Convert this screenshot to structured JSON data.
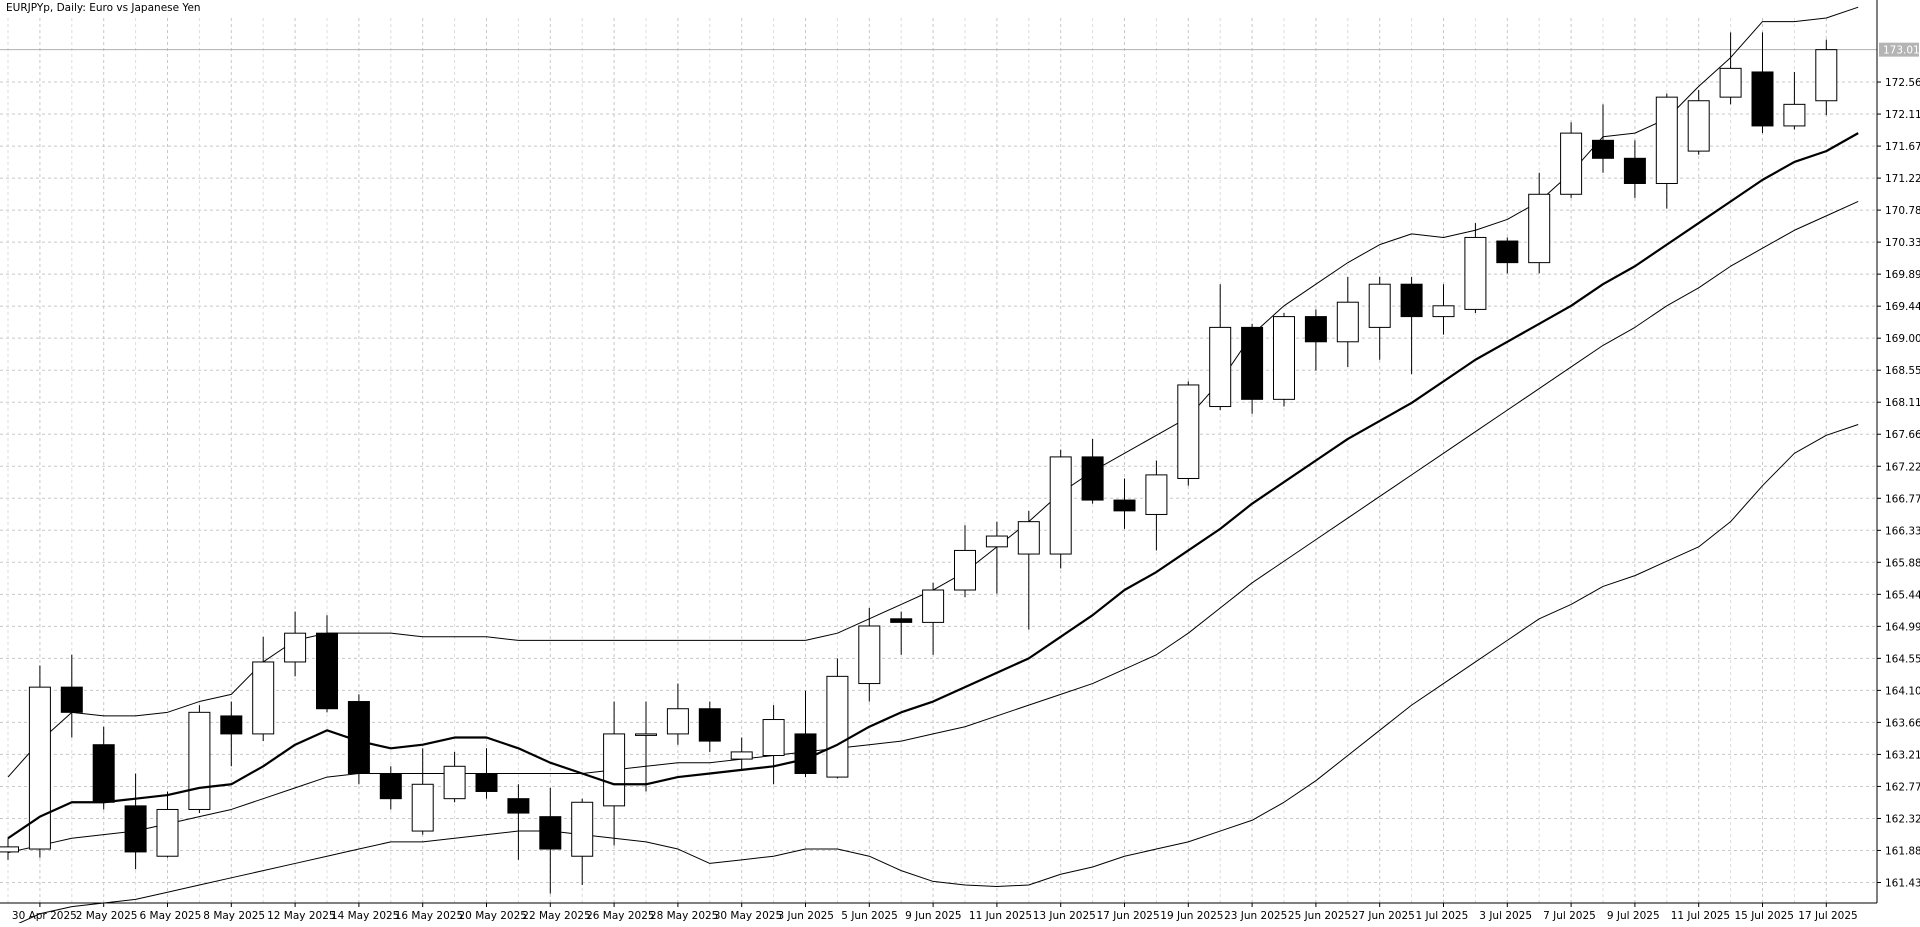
{
  "chart_data": {
    "type": "candlestick",
    "title": "EURJPYp, Daily:  Euro vs Japanese Yen",
    "symbol": "EURJPYp",
    "timeframe": "Daily",
    "ylim": [
      161.15,
      173.45
    ],
    "current_price": "173.010",
    "grid": true,
    "y_ticks": [
      "172.560",
      "172.115",
      "171.670",
      "171.225",
      "170.780",
      "170.335",
      "169.890",
      "169.445",
      "169.000",
      "168.555",
      "168.110",
      "167.665",
      "167.220",
      "166.775",
      "166.330",
      "165.885",
      "165.440",
      "164.995",
      "164.550",
      "164.105",
      "163.660",
      "163.215",
      "162.770",
      "162.325",
      "161.880",
      "161.435"
    ],
    "x_labels": [
      {
        "i": 1,
        "label": "30 Apr 2025"
      },
      {
        "i": 3,
        "label": "2 May 2025"
      },
      {
        "i": 5,
        "label": "6 May 2025"
      },
      {
        "i": 7,
        "label": "8 May 2025"
      },
      {
        "i": 9,
        "label": "12 May 2025"
      },
      {
        "i": 11,
        "label": "14 May 2025"
      },
      {
        "i": 13,
        "label": "16 May 2025"
      },
      {
        "i": 15,
        "label": "20 May 2025"
      },
      {
        "i": 17,
        "label": "22 May 2025"
      },
      {
        "i": 19,
        "label": "26 May 2025"
      },
      {
        "i": 21,
        "label": "28 May 2025"
      },
      {
        "i": 23,
        "label": "30 May 2025"
      },
      {
        "i": 25,
        "label": "3 Jun 2025"
      },
      {
        "i": 27,
        "label": "5 Jun 2025"
      },
      {
        "i": 29,
        "label": "9 Jun 2025"
      },
      {
        "i": 31,
        "label": "11 Jun 2025"
      },
      {
        "i": 33,
        "label": "13 Jun 2025"
      },
      {
        "i": 35,
        "label": "17 Jun 2025"
      },
      {
        "i": 37,
        "label": "19 Jun 2025"
      },
      {
        "i": 39,
        "label": "23 Jun 2025"
      },
      {
        "i": 41,
        "label": "25 Jun 2025"
      },
      {
        "i": 43,
        "label": "27 Jun 2025"
      },
      {
        "i": 45,
        "label": "1 Jul 2025"
      },
      {
        "i": 47,
        "label": "3 Jul 2025"
      },
      {
        "i": 49,
        "label": "7 Jul 2025"
      },
      {
        "i": 51,
        "label": "9 Jul 2025"
      },
      {
        "i": 53,
        "label": "11 Jul 2025"
      },
      {
        "i": 55,
        "label": "15 Jul 2025"
      },
      {
        "i": 57,
        "label": "17 Jul 2025"
      }
    ],
    "candles": [
      {
        "o": 161.86,
        "h": 162.05,
        "l": 161.75,
        "c": 161.93
      },
      {
        "o": 161.9,
        "h": 164.45,
        "l": 161.78,
        "c": 164.15
      },
      {
        "o": 164.15,
        "h": 164.6,
        "l": 163.45,
        "c": 163.8
      },
      {
        "o": 163.35,
        "h": 163.6,
        "l": 162.45,
        "c": 162.55
      },
      {
        "o": 162.5,
        "h": 162.95,
        "l": 161.62,
        "c": 161.86
      },
      {
        "o": 161.8,
        "h": 162.7,
        "l": 161.78,
        "c": 162.45
      },
      {
        "o": 162.45,
        "h": 163.9,
        "l": 162.4,
        "c": 163.8
      },
      {
        "o": 163.75,
        "h": 163.95,
        "l": 163.05,
        "c": 163.5
      },
      {
        "o": 163.5,
        "h": 164.85,
        "l": 163.4,
        "c": 164.5
      },
      {
        "o": 164.5,
        "h": 165.2,
        "l": 164.3,
        "c": 164.9
      },
      {
        "o": 164.9,
        "h": 165.15,
        "l": 163.8,
        "c": 163.85
      },
      {
        "o": 163.95,
        "h": 164.05,
        "l": 162.8,
        "c": 162.95
      },
      {
        "o": 162.95,
        "h": 163.05,
        "l": 162.45,
        "c": 162.6
      },
      {
        "o": 162.15,
        "h": 163.3,
        "l": 162.1,
        "c": 162.8
      },
      {
        "o": 162.6,
        "h": 163.25,
        "l": 162.55,
        "c": 163.05
      },
      {
        "o": 162.95,
        "h": 163.3,
        "l": 162.6,
        "c": 162.7
      },
      {
        "o": 162.6,
        "h": 162.8,
        "l": 161.75,
        "c": 162.4
      },
      {
        "o": 162.35,
        "h": 162.75,
        "l": 161.28,
        "c": 161.9
      },
      {
        "o": 161.8,
        "h": 162.6,
        "l": 161.4,
        "c": 162.55
      },
      {
        "o": 162.5,
        "h": 163.95,
        "l": 161.95,
        "c": 163.5
      },
      {
        "o": 163.5,
        "h": 163.95,
        "l": 162.7,
        "c": 163.5
      },
      {
        "o": 163.5,
        "h": 164.2,
        "l": 163.35,
        "c": 163.85
      },
      {
        "o": 163.85,
        "h": 163.95,
        "l": 163.25,
        "c": 163.4
      },
      {
        "o": 163.15,
        "h": 163.45,
        "l": 163.0,
        "c": 163.25
      },
      {
        "o": 163.2,
        "h": 163.9,
        "l": 162.8,
        "c": 163.7
      },
      {
        "o": 163.5,
        "h": 164.1,
        "l": 162.9,
        "c": 162.95
      },
      {
        "o": 162.9,
        "h": 164.55,
        "l": 162.88,
        "c": 164.3
      },
      {
        "o": 164.2,
        "h": 165.25,
        "l": 163.95,
        "c": 165.0
      },
      {
        "o": 165.1,
        "h": 165.2,
        "l": 164.6,
        "c": 165.05
      },
      {
        "o": 165.05,
        "h": 165.6,
        "l": 164.6,
        "c": 165.5
      },
      {
        "o": 165.5,
        "h": 166.4,
        "l": 165.4,
        "c": 166.05
      },
      {
        "o": 166.1,
        "h": 166.45,
        "l": 165.45,
        "c": 166.25
      },
      {
        "o": 166.0,
        "h": 166.6,
        "l": 164.95,
        "c": 166.45
      },
      {
        "o": 166.0,
        "h": 167.45,
        "l": 165.8,
        "c": 167.35
      },
      {
        "o": 167.35,
        "h": 167.6,
        "l": 166.7,
        "c": 166.75
      },
      {
        "o": 166.75,
        "h": 167.05,
        "l": 166.35,
        "c": 166.6
      },
      {
        "o": 166.55,
        "h": 167.3,
        "l": 166.05,
        "c": 167.1
      },
      {
        "o": 167.05,
        "h": 168.4,
        "l": 166.95,
        "c": 168.35
      },
      {
        "o": 168.05,
        "h": 169.75,
        "l": 168.0,
        "c": 169.15
      },
      {
        "o": 169.15,
        "h": 169.2,
        "l": 167.95,
        "c": 168.15
      },
      {
        "o": 168.15,
        "h": 169.35,
        "l": 168.05,
        "c": 169.3
      },
      {
        "o": 169.3,
        "h": 169.4,
        "l": 168.55,
        "c": 168.95
      },
      {
        "o": 168.95,
        "h": 169.85,
        "l": 168.6,
        "c": 169.5
      },
      {
        "o": 169.15,
        "h": 169.85,
        "l": 168.7,
        "c": 169.75
      },
      {
        "o": 169.75,
        "h": 169.85,
        "l": 168.5,
        "c": 169.3
      },
      {
        "o": 169.3,
        "h": 169.75,
        "l": 169.05,
        "c": 169.45
      },
      {
        "o": 169.4,
        "h": 170.6,
        "l": 169.35,
        "c": 170.4
      },
      {
        "o": 170.35,
        "h": 170.4,
        "l": 169.9,
        "c": 170.05
      },
      {
        "o": 170.05,
        "h": 171.3,
        "l": 169.9,
        "c": 171.0
      },
      {
        "o": 171.0,
        "h": 172.0,
        "l": 170.95,
        "c": 171.85
      },
      {
        "o": 171.75,
        "h": 172.25,
        "l": 171.3,
        "c": 171.5
      },
      {
        "o": 171.5,
        "h": 171.75,
        "l": 170.95,
        "c": 171.15
      },
      {
        "o": 171.15,
        "h": 172.4,
        "l": 170.8,
        "c": 172.35
      },
      {
        "o": 171.6,
        "h": 172.45,
        "l": 171.55,
        "c": 172.3
      },
      {
        "o": 172.35,
        "h": 173.25,
        "l": 172.25,
        "c": 172.75
      },
      {
        "o": 172.7,
        "h": 173.25,
        "l": 171.85,
        "c": 171.95
      },
      {
        "o": 171.95,
        "h": 172.7,
        "l": 171.9,
        "c": 172.25
      },
      {
        "o": 172.3,
        "h": 173.15,
        "l": 172.1,
        "c": 173.01
      }
    ],
    "ma_fast": [
      162.05,
      162.35,
      162.55,
      162.55,
      162.6,
      162.65,
      162.75,
      162.8,
      163.05,
      163.35,
      163.55,
      163.4,
      163.3,
      163.35,
      163.45,
      163.45,
      163.3,
      163.1,
      162.95,
      162.8,
      162.8,
      162.9,
      162.95,
      163.0,
      163.05,
      163.15,
      163.35,
      163.6,
      163.8,
      163.95,
      164.15,
      164.35,
      164.55,
      164.85,
      165.15,
      165.5,
      165.75,
      166.05,
      166.35,
      166.7,
      167.0,
      167.3,
      167.6,
      167.85,
      168.1,
      168.4,
      168.7,
      168.95,
      169.2,
      169.45,
      169.75,
      170.0,
      170.3,
      170.6,
      170.9,
      171.2,
      171.45,
      171.6,
      171.85
    ],
    "ma_slow": [
      161.85,
      161.95,
      162.05,
      162.1,
      162.15,
      162.25,
      162.35,
      162.45,
      162.6,
      162.75,
      162.9,
      162.95,
      162.95,
      162.95,
      162.95,
      162.95,
      162.95,
      162.95,
      162.95,
      163.0,
      163.05,
      163.1,
      163.1,
      163.15,
      163.2,
      163.25,
      163.3,
      163.35,
      163.4,
      163.5,
      163.6,
      163.75,
      163.9,
      164.05,
      164.2,
      164.4,
      164.6,
      164.9,
      165.25,
      165.6,
      165.9,
      166.2,
      166.5,
      166.8,
      167.1,
      167.4,
      167.7,
      168.0,
      168.3,
      168.6,
      168.9,
      169.15,
      169.45,
      169.7,
      170.0,
      170.25,
      170.5,
      170.7,
      170.9
    ],
    "band_upper": [
      162.9,
      163.4,
      163.8,
      163.75,
      163.75,
      163.8,
      163.95,
      164.05,
      164.5,
      164.8,
      164.9,
      164.9,
      164.9,
      164.85,
      164.85,
      164.85,
      164.8,
      164.8,
      164.8,
      164.8,
      164.8,
      164.8,
      164.8,
      164.8,
      164.8,
      164.8,
      164.9,
      165.1,
      165.3,
      165.5,
      165.75,
      166.1,
      166.45,
      166.85,
      167.15,
      167.4,
      167.65,
      167.9,
      168.4,
      169.05,
      169.45,
      169.75,
      170.05,
      170.3,
      170.45,
      170.4,
      170.5,
      170.65,
      170.9,
      171.3,
      171.8,
      171.85,
      172.05,
      172.5,
      172.9,
      173.4,
      173.4,
      173.45,
      173.6
    ],
    "band_lower": [
      160.8,
      161.0,
      161.1,
      161.15,
      161.2,
      161.3,
      161.4,
      161.5,
      161.6,
      161.7,
      161.8,
      161.9,
      162.0,
      162.0,
      162.05,
      162.1,
      162.15,
      162.15,
      162.1,
      162.05,
      162.0,
      161.9,
      161.7,
      161.75,
      161.8,
      161.9,
      161.9,
      161.8,
      161.6,
      161.45,
      161.4,
      161.38,
      161.4,
      161.55,
      161.65,
      161.8,
      161.9,
      162.0,
      162.15,
      162.3,
      162.55,
      162.85,
      163.2,
      163.55,
      163.9,
      164.2,
      164.5,
      164.8,
      165.1,
      165.3,
      165.55,
      165.7,
      165.9,
      166.1,
      166.45,
      166.95,
      167.4,
      167.65,
      167.8
    ]
  }
}
